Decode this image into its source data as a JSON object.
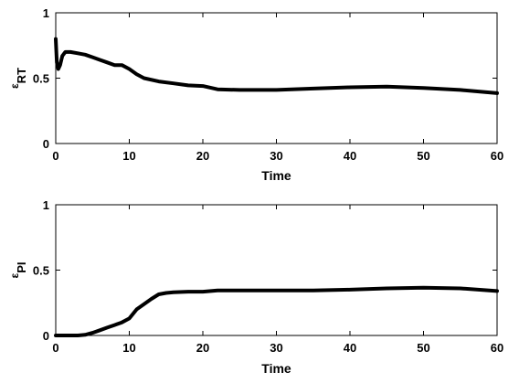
{
  "chart_data": [
    {
      "type": "line",
      "xlabel": "Time",
      "ylabel": "ε",
      "ylabel_subscript": "RT",
      "xlim": [
        0,
        60
      ],
      "ylim": [
        0,
        1
      ],
      "xticks": [
        "0",
        "10",
        "20",
        "30",
        "40",
        "50",
        "60"
      ],
      "yticks": [
        "0",
        "0.5",
        "1"
      ],
      "grid": false,
      "series": [
        {
          "x": [
            0,
            0.15,
            0.35,
            0.6,
            0.9,
            1.3,
            2,
            3,
            4,
            5,
            6,
            7,
            8,
            9,
            10,
            11,
            12,
            14,
            16,
            18,
            20,
            22,
            25,
            30,
            35,
            40,
            45,
            50,
            55,
            60
          ],
          "values": [
            0.8,
            0.62,
            0.57,
            0.6,
            0.67,
            0.7,
            0.7,
            0.69,
            0.68,
            0.66,
            0.64,
            0.62,
            0.6,
            0.6,
            0.57,
            0.53,
            0.5,
            0.475,
            0.46,
            0.445,
            0.44,
            0.415,
            0.41,
            0.41,
            0.42,
            0.43,
            0.435,
            0.425,
            0.41,
            0.385
          ]
        }
      ]
    },
    {
      "type": "line",
      "xlabel": "Time",
      "ylabel": "ε",
      "ylabel_subscript": "PI",
      "xlim": [
        0,
        60
      ],
      "ylim": [
        0,
        1
      ],
      "xticks": [
        "0",
        "10",
        "20",
        "30",
        "40",
        "50",
        "60"
      ],
      "yticks": [
        "0",
        "0.5",
        "1"
      ],
      "grid": false,
      "series": [
        {
          "x": [
            0,
            2,
            3,
            4,
            5,
            6,
            7,
            8,
            9,
            10,
            11,
            12,
            13,
            14,
            15,
            16,
            18,
            20,
            22,
            25,
            30,
            35,
            40,
            45,
            50,
            55,
            60
          ],
          "values": [
            0,
            0,
            0,
            0.005,
            0.02,
            0.04,
            0.06,
            0.08,
            0.1,
            0.13,
            0.2,
            0.24,
            0.28,
            0.315,
            0.325,
            0.33,
            0.335,
            0.335,
            0.345,
            0.345,
            0.345,
            0.345,
            0.35,
            0.36,
            0.365,
            0.36,
            0.34
          ]
        }
      ]
    }
  ]
}
